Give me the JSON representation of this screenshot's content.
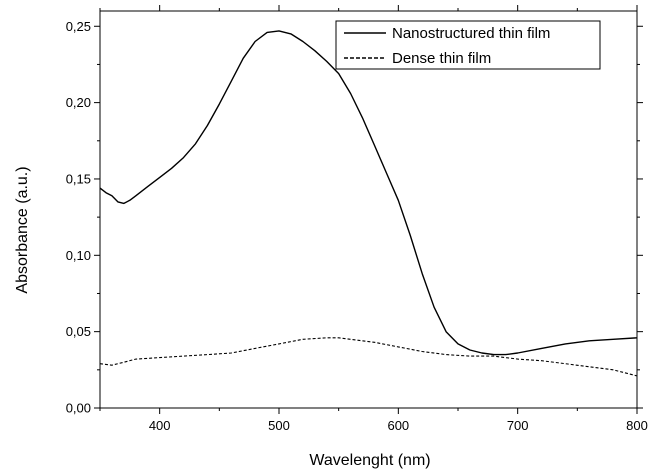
{
  "chart_data": {
    "type": "line",
    "title": "",
    "xlabel": "Wavelenght (nm)",
    "ylabel": "Absorbance (a.u.)",
    "xlim": [
      350,
      800
    ],
    "ylim": [
      0,
      0.26
    ],
    "x_ticks": [
      {
        "value": 400,
        "label": "400"
      },
      {
        "value": 500,
        "label": "500"
      },
      {
        "value": 600,
        "label": "600"
      },
      {
        "value": 700,
        "label": "700"
      },
      {
        "value": 800,
        "label": "800"
      }
    ],
    "y_ticks": [
      {
        "value": 0.0,
        "label": "0,00"
      },
      {
        "value": 0.05,
        "label": "0,05"
      },
      {
        "value": 0.1,
        "label": "0,10"
      },
      {
        "value": 0.15,
        "label": "0,15"
      },
      {
        "value": 0.2,
        "label": "0,20"
      },
      {
        "value": 0.25,
        "label": "0,25"
      }
    ],
    "grid": false,
    "legend_position": "top-right",
    "series": [
      {
        "name": "Nanostructured thin film",
        "line_style": "solid",
        "color": "#000000",
        "x": [
          350,
          355,
          360,
          365,
          370,
          375,
          380,
          390,
          400,
          410,
          420,
          430,
          440,
          450,
          460,
          470,
          480,
          490,
          500,
          510,
          520,
          530,
          540,
          550,
          560,
          570,
          580,
          590,
          600,
          610,
          620,
          630,
          640,
          650,
          660,
          670,
          680,
          690,
          700,
          720,
          740,
          760,
          780,
          800
        ],
        "y": [
          0.144,
          0.141,
          0.139,
          0.135,
          0.134,
          0.136,
          0.139,
          0.145,
          0.151,
          0.157,
          0.164,
          0.173,
          0.185,
          0.199,
          0.214,
          0.229,
          0.24,
          0.246,
          0.247,
          0.245,
          0.24,
          0.234,
          0.227,
          0.219,
          0.206,
          0.19,
          0.172,
          0.154,
          0.136,
          0.113,
          0.088,
          0.066,
          0.05,
          0.042,
          0.038,
          0.036,
          0.035,
          0.035,
          0.036,
          0.039,
          0.042,
          0.044,
          0.045,
          0.046
        ]
      },
      {
        "name": "Dense thin film",
        "line_style": "dashed",
        "color": "#000000",
        "x": [
          350,
          360,
          370,
          380,
          400,
          420,
          440,
          460,
          480,
          500,
          520,
          540,
          550,
          560,
          580,
          600,
          620,
          640,
          660,
          680,
          700,
          720,
          740,
          760,
          780,
          800
        ],
        "y": [
          0.029,
          0.028,
          0.03,
          0.032,
          0.033,
          0.034,
          0.035,
          0.036,
          0.039,
          0.042,
          0.045,
          0.046,
          0.046,
          0.045,
          0.043,
          0.04,
          0.037,
          0.035,
          0.034,
          0.034,
          0.032,
          0.031,
          0.029,
          0.027,
          0.025,
          0.021
        ]
      }
    ]
  }
}
